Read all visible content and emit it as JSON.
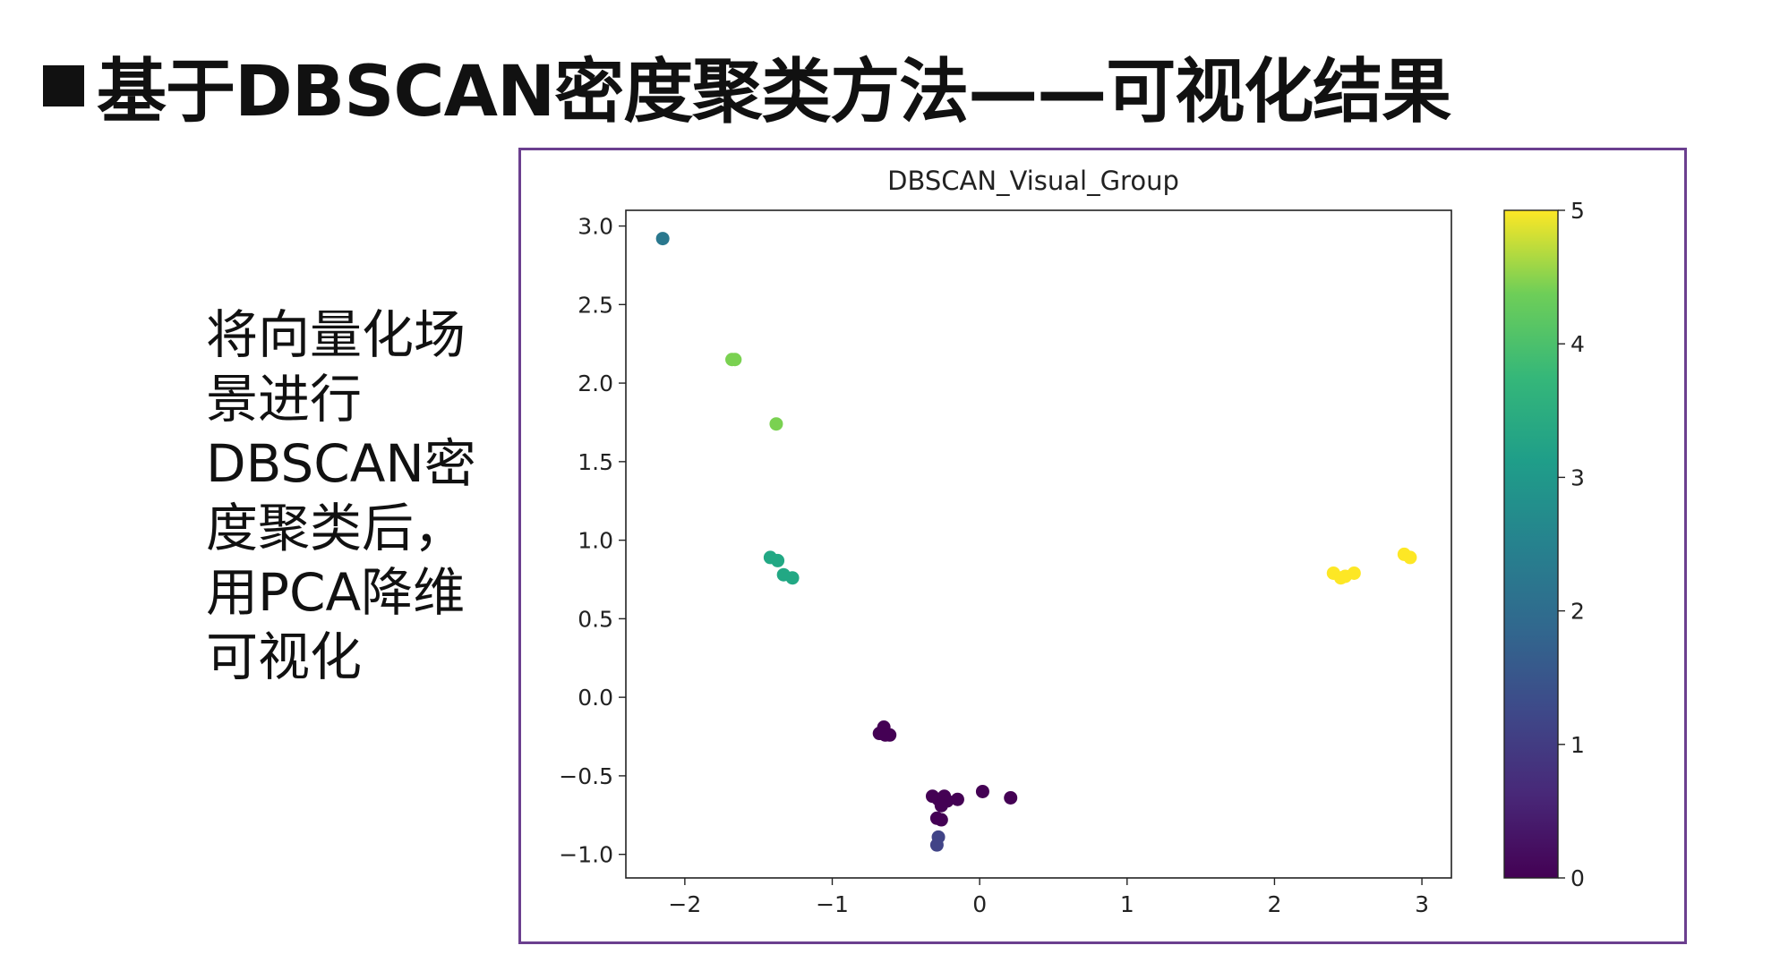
{
  "slide": {
    "title": "基于DBSCAN密度聚类方法——可视化结果",
    "side_text_lines": [
      "将向量化场",
      "景进行",
      "DBSCAN密",
      "度聚类后，",
      "用PCA降维",
      "可视化"
    ]
  },
  "colors": {
    "frame_border": "#6b3f8f",
    "colormap": "viridis",
    "cluster_0": "#440154",
    "cluster_1": "#414487",
    "cluster_2": "#2a788e",
    "cluster_3": "#22a884",
    "cluster_4": "#7ad151",
    "cluster_5": "#fde725"
  },
  "chart_data": {
    "type": "scatter",
    "title": "DBSCAN_Visual_Group",
    "xlabel": "",
    "ylabel": "",
    "xlim": [
      -2.4,
      3.2
    ],
    "ylim": [
      -1.15,
      3.1
    ],
    "xticks": [
      -2,
      -1,
      0,
      1,
      2,
      3
    ],
    "xtick_labels": [
      "−2",
      "−1",
      "0",
      "1",
      "2",
      "3"
    ],
    "yticks": [
      -1.0,
      -0.5,
      0.0,
      0.5,
      1.0,
      1.5,
      2.0,
      2.5,
      3.0
    ],
    "ytick_labels": [
      "−1.0",
      "−0.5",
      "0.0",
      "0.5",
      "1.0",
      "1.5",
      "2.0",
      "2.5",
      "3.0"
    ],
    "grid": false,
    "colorbar": {
      "range": [
        0,
        5
      ],
      "ticks": [
        0,
        1,
        2,
        3,
        4,
        5
      ],
      "tick_labels": [
        "0",
        "1",
        "2",
        "3",
        "4",
        "5"
      ],
      "placement": "right"
    },
    "points": [
      {
        "x": -2.15,
        "y": 2.92,
        "label": 2
      },
      {
        "x": -1.68,
        "y": 2.15,
        "label": 4
      },
      {
        "x": -1.66,
        "y": 2.15,
        "label": 4
      },
      {
        "x": -1.38,
        "y": 1.74,
        "label": 4
      },
      {
        "x": -1.42,
        "y": 0.89,
        "label": 3
      },
      {
        "x": -1.37,
        "y": 0.87,
        "label": 3
      },
      {
        "x": -1.33,
        "y": 0.78,
        "label": 3
      },
      {
        "x": -1.27,
        "y": 0.76,
        "label": 3
      },
      {
        "x": -0.65,
        "y": -0.19,
        "label": 0
      },
      {
        "x": -0.68,
        "y": -0.23,
        "label": 0
      },
      {
        "x": -0.61,
        "y": -0.24,
        "label": 0
      },
      {
        "x": -0.64,
        "y": -0.24,
        "label": 0
      },
      {
        "x": -0.32,
        "y": -0.63,
        "label": 0
      },
      {
        "x": -0.28,
        "y": -0.65,
        "label": 0
      },
      {
        "x": -0.24,
        "y": -0.63,
        "label": 0
      },
      {
        "x": -0.22,
        "y": -0.66,
        "label": 0
      },
      {
        "x": -0.15,
        "y": -0.65,
        "label": 0
      },
      {
        "x": -0.26,
        "y": -0.69,
        "label": 0
      },
      {
        "x": -0.29,
        "y": -0.77,
        "label": 0
      },
      {
        "x": -0.26,
        "y": -0.78,
        "label": 0
      },
      {
        "x": 0.02,
        "y": -0.6,
        "label": 0
      },
      {
        "x": 0.21,
        "y": -0.64,
        "label": 0
      },
      {
        "x": -0.28,
        "y": -0.89,
        "label": 1
      },
      {
        "x": -0.29,
        "y": -0.94,
        "label": 1
      },
      {
        "x": 2.4,
        "y": 0.79,
        "label": 5
      },
      {
        "x": 2.45,
        "y": 0.76,
        "label": 5
      },
      {
        "x": 2.48,
        "y": 0.77,
        "label": 5
      },
      {
        "x": 2.54,
        "y": 0.79,
        "label": 5
      },
      {
        "x": 2.88,
        "y": 0.91,
        "label": 5
      },
      {
        "x": 2.92,
        "y": 0.89,
        "label": 5
      }
    ]
  }
}
